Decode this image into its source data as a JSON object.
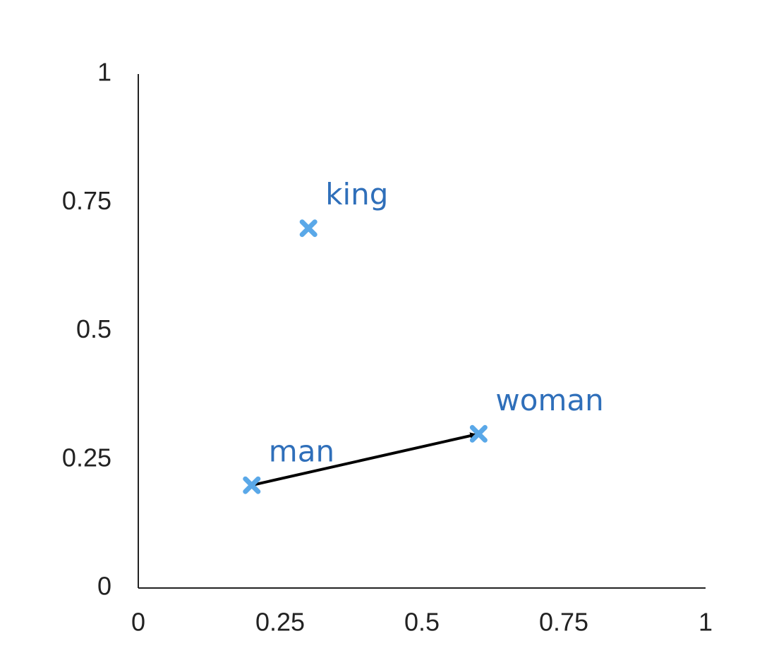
{
  "chart_data": {
    "type": "scatter",
    "x": [
      0.3,
      0.2,
      0.6
    ],
    "values": [
      0.7,
      0.2,
      0.3
    ],
    "labels": [
      "king",
      "man",
      "woman"
    ],
    "color": "#5aa8e8",
    "label_color": "#2f6fba",
    "arrow": {
      "from": "man",
      "to": "woman"
    },
    "xlim": [
      0,
      1
    ],
    "ylim": [
      0,
      1
    ],
    "xticks": [
      0,
      0.25,
      0.5,
      0.75,
      1
    ],
    "yticks": [
      0,
      0.25,
      0.5,
      0.75,
      1
    ]
  }
}
